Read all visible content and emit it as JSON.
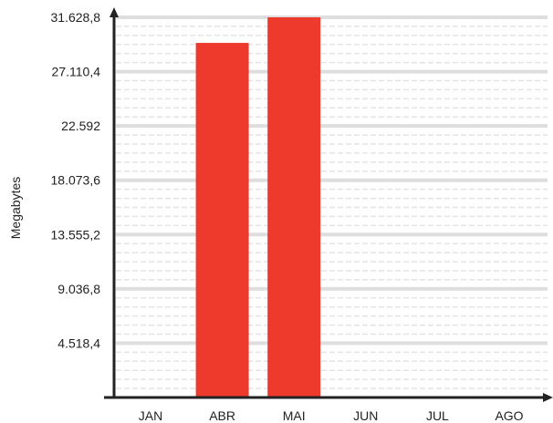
{
  "chart_data": {
    "type": "bar",
    "categories": [
      "JAN",
      "ABR",
      "MAI",
      "JUN",
      "JUL",
      "AGO"
    ],
    "values": [
      0,
      29500,
      31628.8,
      0,
      0,
      0
    ],
    "title": "",
    "xlabel": "",
    "ylabel": "Megabytes",
    "ylim": [
      0,
      31628.8
    ],
    "yticks": [
      4518.4,
      9036.8,
      13555.2,
      18073.6,
      22592,
      27110.4,
      31628.8
    ],
    "ytick_labels": [
      "4.518,4",
      "9.036,8",
      "13.555,2",
      "18.073,6",
      "22.592",
      "27.110,4",
      "31.628,8"
    ],
    "grid": true,
    "legend": "none",
    "colors": {
      "bar": "#ee3a2d",
      "grid_major": "#dedede",
      "grid_minor": "#e4e4e4",
      "axis": "#222222"
    }
  }
}
